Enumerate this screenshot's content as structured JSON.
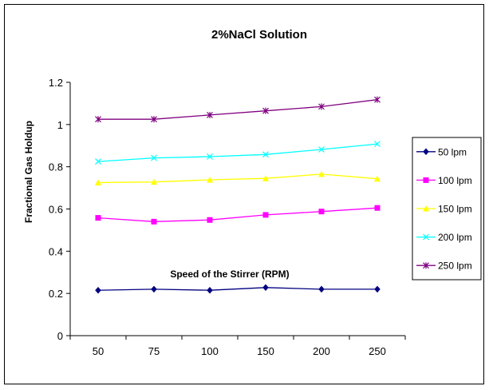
{
  "chart_data": {
    "type": "line",
    "title": "2%NaCl Solution",
    "xlabel": "Speed of the Stirrer (RPM)",
    "ylabel": "Fractional Gas Holdup",
    "categories": [
      "50",
      "75",
      "100",
      "150",
      "200",
      "250"
    ],
    "ylim": [
      0,
      1.2
    ],
    "yticks": [
      "0",
      "0.2",
      "0.4",
      "0.6",
      "0.8",
      "1",
      "1.2"
    ],
    "grid": false,
    "legend_position": "right",
    "series": [
      {
        "name": "50 lpm",
        "color": "#000080",
        "marker": "diamond",
        "values": [
          0.215,
          0.22,
          0.215,
          0.228,
          0.22,
          0.22
        ]
      },
      {
        "name": "100 lpm",
        "color": "#ff00ff",
        "marker": "square",
        "values": [
          0.558,
          0.54,
          0.548,
          0.572,
          0.588,
          0.605
        ]
      },
      {
        "name": "150 lpm",
        "color": "#ffff00",
        "marker": "triangle",
        "values": [
          0.725,
          0.728,
          0.738,
          0.745,
          0.765,
          0.743
        ]
      },
      {
        "name": "200 lpm",
        "color": "#00ffff",
        "marker": "x",
        "values": [
          0.825,
          0.842,
          0.848,
          0.858,
          0.882,
          0.908
        ]
      },
      {
        "name": "250 lpm",
        "color": "#800080",
        "marker": "star",
        "values": [
          1.025,
          1.025,
          1.045,
          1.065,
          1.085,
          1.118
        ]
      }
    ]
  }
}
